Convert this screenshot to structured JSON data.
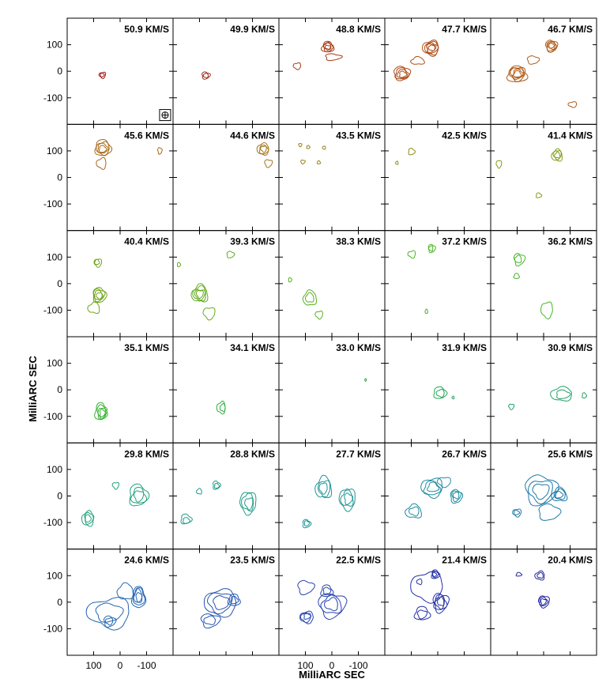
{
  "chart_data": {
    "type": "contour",
    "title": "",
    "xlabel": "MilliARC SEC",
    "ylabel": "MilliARC SEC",
    "xlim": [
      200,
      -200
    ],
    "ylim": [
      -200,
      200
    ],
    "xticks": [
      100,
      0,
      -100
    ],
    "xtick_labels": [
      "100",
      "0",
      "-100"
    ],
    "yticks": [
      100,
      0,
      -100
    ],
    "ytick_labels": [
      "100",
      "0",
      "-100"
    ],
    "grid_rows": 6,
    "grid_cols": 5,
    "beam": {
      "x": -170,
      "y": -165,
      "label": "beam"
    },
    "panels": [
      {
        "label": "50.9 KM/S",
        "color": "#a01818",
        "sources": [
          {
            "x": 65,
            "y": -12,
            "rx": 12,
            "ry": 11,
            "levels": 2
          }
        ]
      },
      {
        "label": "49.9 KM/S",
        "color": "#a02818",
        "sources": [
          {
            "x": 75,
            "y": -14,
            "rx": 15,
            "ry": 13,
            "levels": 2
          }
        ]
      },
      {
        "label": "48.8 KM/S",
        "color": "#a83a14",
        "sources": [
          {
            "x": 15,
            "y": 92,
            "rx": 22,
            "ry": 20,
            "levels": 4
          },
          {
            "x": 130,
            "y": 18,
            "rx": 14,
            "ry": 12,
            "levels": 1
          },
          {
            "x": -5,
            "y": 55,
            "rx": 30,
            "ry": 12,
            "levels": 1
          }
        ]
      },
      {
        "label": "47.7 KM/S",
        "color": "#b04a14",
        "sources": [
          {
            "x": 25,
            "y": 88,
            "rx": 30,
            "ry": 28,
            "levels": 5
          },
          {
            "x": 135,
            "y": -10,
            "rx": 30,
            "ry": 26,
            "levels": 4
          },
          {
            "x": 75,
            "y": 40,
            "rx": 25,
            "ry": 14,
            "levels": 1
          }
        ]
      },
      {
        "label": "46.7 KM/S",
        "color": "#b05a14",
        "sources": [
          {
            "x": -30,
            "y": 95,
            "rx": 22,
            "ry": 22,
            "levels": 4
          },
          {
            "x": 100,
            "y": -10,
            "rx": 35,
            "ry": 30,
            "levels": 5
          },
          {
            "x": -110,
            "y": -125,
            "rx": 16,
            "ry": 10,
            "levels": 1
          },
          {
            "x": 40,
            "y": 40,
            "rx": 22,
            "ry": 15,
            "levels": 1
          }
        ]
      },
      {
        "label": "45.6 KM/S",
        "color": "#a86814",
        "sources": [
          {
            "x": 65,
            "y": 110,
            "rx": 30,
            "ry": 30,
            "levels": 4
          },
          {
            "x": 70,
            "y": 55,
            "rx": 18,
            "ry": 20,
            "levels": 1
          },
          {
            "x": -150,
            "y": 100,
            "rx": 8,
            "ry": 12,
            "levels": 1
          }
        ]
      },
      {
        "label": "44.6 KM/S",
        "color": "#a07414",
        "sources": [
          {
            "x": -140,
            "y": 105,
            "rx": 22,
            "ry": 22,
            "levels": 3
          },
          {
            "x": -160,
            "y": 55,
            "rx": 14,
            "ry": 14,
            "levels": 1
          }
        ]
      },
      {
        "label": "43.5 KM/S",
        "color": "#988418",
        "sources": [
          {
            "x": 120,
            "y": 120,
            "rx": 6,
            "ry": 6,
            "levels": 1
          },
          {
            "x": 90,
            "y": 115,
            "rx": 6,
            "ry": 6,
            "levels": 1
          },
          {
            "x": 30,
            "y": 110,
            "rx": 6,
            "ry": 6,
            "levels": 1
          },
          {
            "x": 110,
            "y": 60,
            "rx": 8,
            "ry": 7,
            "levels": 1
          },
          {
            "x": 50,
            "y": 55,
            "rx": 6,
            "ry": 6,
            "levels": 1
          }
        ]
      },
      {
        "label": "42.5 KM/S",
        "color": "#8c9018",
        "sources": [
          {
            "x": 100,
            "y": 100,
            "rx": 12,
            "ry": 12,
            "levels": 1
          },
          {
            "x": 155,
            "y": 55,
            "rx": 5,
            "ry": 6,
            "levels": 1
          }
        ]
      },
      {
        "label": "41.4 KM/S",
        "color": "#809c18",
        "sources": [
          {
            "x": -50,
            "y": 85,
            "rx": 20,
            "ry": 22,
            "levels": 3
          },
          {
            "x": 170,
            "y": 50,
            "rx": 10,
            "ry": 14,
            "levels": 1
          },
          {
            "x": 20,
            "y": -65,
            "rx": 10,
            "ry": 9,
            "levels": 1
          }
        ]
      },
      {
        "label": "40.4 KM/S",
        "color": "#6ea418",
        "sources": [
          {
            "x": 85,
            "y": 80,
            "rx": 14,
            "ry": 15,
            "levels": 2
          },
          {
            "x": 80,
            "y": -45,
            "rx": 25,
            "ry": 28,
            "levels": 4
          },
          {
            "x": 100,
            "y": -90,
            "rx": 22,
            "ry": 20,
            "levels": 1
          }
        ]
      },
      {
        "label": "39.3 KM/S",
        "color": "#62ac1c",
        "sources": [
          {
            "x": -15,
            "y": 110,
            "rx": 14,
            "ry": 12,
            "levels": 1
          },
          {
            "x": 100,
            "y": -40,
            "rx": 30,
            "ry": 32,
            "levels": 4
          },
          {
            "x": 65,
            "y": -110,
            "rx": 22,
            "ry": 22,
            "levels": 1
          },
          {
            "x": 180,
            "y": 70,
            "rx": 6,
            "ry": 8,
            "levels": 1
          }
        ]
      },
      {
        "label": "38.3 KM/S",
        "color": "#56b01c",
        "sources": [
          {
            "x": 85,
            "y": -55,
            "rx": 25,
            "ry": 28,
            "levels": 2
          },
          {
            "x": 50,
            "y": -120,
            "rx": 14,
            "ry": 14,
            "levels": 1
          },
          {
            "x": 160,
            "y": 15,
            "rx": 6,
            "ry": 8,
            "levels": 1
          }
        ]
      },
      {
        "label": "37.2 KM/S",
        "color": "#4cb420",
        "sources": [
          {
            "x": 100,
            "y": 110,
            "rx": 14,
            "ry": 13,
            "levels": 1
          },
          {
            "x": 25,
            "y": 135,
            "rx": 13,
            "ry": 15,
            "levels": 2
          },
          {
            "x": 45,
            "y": -105,
            "rx": 5,
            "ry": 8,
            "levels": 1
          }
        ]
      },
      {
        "label": "36.2 KM/S",
        "color": "#44b424",
        "sources": [
          {
            "x": 95,
            "y": 90,
            "rx": 20,
            "ry": 22,
            "levels": 2
          },
          {
            "x": 105,
            "y": 30,
            "rx": 10,
            "ry": 10,
            "levels": 1
          },
          {
            "x": -10,
            "y": -100,
            "rx": 22,
            "ry": 30,
            "levels": 1
          }
        ]
      },
      {
        "label": "35.1 KM/S",
        "color": "#34b030",
        "sources": [
          {
            "x": 70,
            "y": -85,
            "rx": 22,
            "ry": 32,
            "levels": 4
          }
        ]
      },
      {
        "label": "34.1 KM/S",
        "color": "#2cac3c",
        "sources": [
          {
            "x": 15,
            "y": -70,
            "rx": 16,
            "ry": 22,
            "levels": 2
          }
        ]
      },
      {
        "label": "33.0 KM/S",
        "color": "#2aa84a",
        "sources": [
          {
            "x": -130,
            "y": 40,
            "rx": 3,
            "ry": 5,
            "levels": 1
          }
        ]
      },
      {
        "label": "31.9 KM/S",
        "color": "#26a458",
        "sources": [
          {
            "x": -10,
            "y": -10,
            "rx": 24,
            "ry": 22,
            "levels": 2
          },
          {
            "x": -60,
            "y": -30,
            "rx": 4,
            "ry": 5,
            "levels": 1
          }
        ]
      },
      {
        "label": "30.9 KM/S",
        "color": "#22a064",
        "sources": [
          {
            "x": -70,
            "y": -15,
            "rx": 40,
            "ry": 26,
            "levels": 2
          },
          {
            "x": 120,
            "y": -65,
            "rx": 10,
            "ry": 10,
            "levels": 1
          },
          {
            "x": -155,
            "y": -20,
            "rx": 8,
            "ry": 10,
            "levels": 1
          }
        ]
      },
      {
        "label": "29.8 KM/S",
        "color": "#20a07a",
        "sources": [
          {
            "x": 15,
            "y": 40,
            "rx": 12,
            "ry": 12,
            "levels": 1
          },
          {
            "x": -70,
            "y": 0,
            "rx": 35,
            "ry": 40,
            "levels": 3
          },
          {
            "x": 120,
            "y": -85,
            "rx": 22,
            "ry": 28,
            "levels": 3
          }
        ]
      },
      {
        "label": "28.8 KM/S",
        "color": "#1e9c88",
        "sources": [
          {
            "x": 35,
            "y": 40,
            "rx": 14,
            "ry": 15,
            "levels": 2
          },
          {
            "x": 100,
            "y": 20,
            "rx": 10,
            "ry": 10,
            "levels": 1
          },
          {
            "x": -85,
            "y": -25,
            "rx": 30,
            "ry": 42,
            "levels": 3
          },
          {
            "x": 150,
            "y": -90,
            "rx": 20,
            "ry": 18,
            "levels": 2
          }
        ]
      },
      {
        "label": "27.7 KM/S",
        "color": "#1e9494",
        "sources": [
          {
            "x": 30,
            "y": 30,
            "rx": 30,
            "ry": 40,
            "levels": 3
          },
          {
            "x": -60,
            "y": -10,
            "rx": 30,
            "ry": 40,
            "levels": 3
          },
          {
            "x": 95,
            "y": -105,
            "rx": 15,
            "ry": 15,
            "levels": 2
          }
        ]
      },
      {
        "label": "26.7 KM/S",
        "color": "#1e8aa0",
        "sources": [
          {
            "x": 20,
            "y": 30,
            "rx": 40,
            "ry": 35,
            "levels": 3
          },
          {
            "x": -70,
            "y": 0,
            "rx": 22,
            "ry": 25,
            "levels": 3
          },
          {
            "x": 90,
            "y": -60,
            "rx": 30,
            "ry": 25,
            "levels": 2
          },
          {
            "x": -25,
            "y": 55,
            "rx": 25,
            "ry": 18,
            "levels": 1
          }
        ]
      },
      {
        "label": "25.6 KM/S",
        "color": "#1e78a8",
        "sources": [
          {
            "x": 10,
            "y": 20,
            "rx": 60,
            "ry": 55,
            "levels": 3
          },
          {
            "x": -60,
            "y": 5,
            "rx": 28,
            "ry": 25,
            "levels": 3
          },
          {
            "x": 100,
            "y": -65,
            "rx": 16,
            "ry": 14,
            "levels": 2
          },
          {
            "x": -20,
            "y": -60,
            "rx": 40,
            "ry": 30,
            "levels": 1
          }
        ]
      },
      {
        "label": "24.6 KM/S",
        "color": "#2266b0",
        "sources": [
          {
            "x": -70,
            "y": 20,
            "rx": 25,
            "ry": 40,
            "levels": 4
          },
          {
            "x": 40,
            "y": -40,
            "rx": 80,
            "ry": 55,
            "levels": 2
          },
          {
            "x": 40,
            "y": -75,
            "rx": 22,
            "ry": 20,
            "levels": 2
          },
          {
            "x": -20,
            "y": 40,
            "rx": 30,
            "ry": 30,
            "levels": 1
          }
        ]
      },
      {
        "label": "23.5 KM/S",
        "color": "#2454b0",
        "sources": [
          {
            "x": 20,
            "y": 0,
            "rx": 60,
            "ry": 50,
            "levels": 3
          },
          {
            "x": 60,
            "y": -70,
            "rx": 35,
            "ry": 25,
            "levels": 2
          },
          {
            "x": -30,
            "y": 10,
            "rx": 22,
            "ry": 22,
            "levels": 2
          }
        ]
      },
      {
        "label": "22.5 KM/S",
        "color": "#2442b0",
        "sources": [
          {
            "x": 0,
            "y": -10,
            "rx": 50,
            "ry": 45,
            "levels": 3
          },
          {
            "x": 20,
            "y": 40,
            "rx": 22,
            "ry": 22,
            "levels": 2
          },
          {
            "x": 95,
            "y": -55,
            "rx": 25,
            "ry": 22,
            "levels": 3
          },
          {
            "x": 100,
            "y": 55,
            "rx": 30,
            "ry": 25,
            "levels": 1
          }
        ]
      },
      {
        "label": "21.4 KM/S",
        "color": "#2230a8",
        "sources": [
          {
            "x": 10,
            "y": 105,
            "rx": 15,
            "ry": 16,
            "levels": 3
          },
          {
            "x": 70,
            "y": 75,
            "rx": 10,
            "ry": 10,
            "levels": 1
          },
          {
            "x": -10,
            "y": 0,
            "rx": 28,
            "ry": 35,
            "levels": 4
          },
          {
            "x": 60,
            "y": -45,
            "rx": 28,
            "ry": 25,
            "levels": 2
          },
          {
            "x": 40,
            "y": 60,
            "rx": 60,
            "ry": 55,
            "levels": 1
          }
        ]
      },
      {
        "label": "20.4 KM/S",
        "color": "#1e24a0",
        "sources": [
          {
            "x": 15,
            "y": 100,
            "rx": 18,
            "ry": 16,
            "levels": 2
          },
          {
            "x": 0,
            "y": 0,
            "rx": 20,
            "ry": 22,
            "levels": 3
          },
          {
            "x": 95,
            "y": 105,
            "rx": 10,
            "ry": 7,
            "levels": 1
          }
        ]
      }
    ]
  }
}
